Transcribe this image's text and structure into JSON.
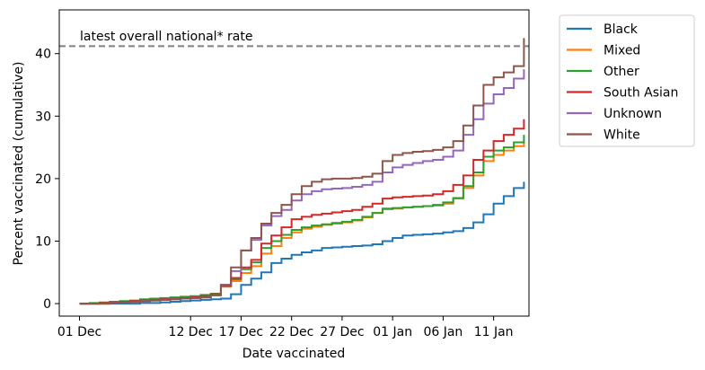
{
  "chart_data": {
    "type": "line",
    "step": true,
    "xlabel": "Date vaccinated",
    "ylabel": "Percent vaccinated (cumulative)",
    "x_ticks": [
      {
        "label": "01 Dec",
        "day": 0
      },
      {
        "label": "12 Dec",
        "day": 11
      },
      {
        "label": "17 Dec",
        "day": 16
      },
      {
        "label": "22 Dec",
        "day": 21
      },
      {
        "label": "27 Dec",
        "day": 26
      },
      {
        "label": "01 Jan",
        "day": 31
      },
      {
        "label": "06 Jan",
        "day": 36
      },
      {
        "label": "11 Jan",
        "day": 41
      }
    ],
    "y_ticks": [
      0,
      10,
      20,
      30,
      40
    ],
    "xlim": [
      -2,
      44.5
    ],
    "ylim": [
      -2,
      47
    ],
    "reference_line": {
      "label": "latest overall national* rate",
      "value": 41.2,
      "color": "#808080"
    },
    "legend_position": "outside-right",
    "days": [
      0,
      1,
      2,
      3,
      4,
      5,
      6,
      7,
      8,
      9,
      10,
      11,
      12,
      13,
      14,
      15,
      16,
      17,
      18,
      19,
      20,
      21,
      22,
      23,
      24,
      25,
      26,
      27,
      28,
      29,
      30,
      31,
      32,
      33,
      34,
      35,
      36,
      37,
      38,
      39,
      40,
      41,
      42,
      43,
      44
    ],
    "series": [
      {
        "name": "Black",
        "color": "#1f77b4",
        "values": [
          0,
          0,
          0,
          0,
          0,
          0,
          0.1,
          0.1,
          0.2,
          0.3,
          0.4,
          0.5,
          0.6,
          0.7,
          0.8,
          1.5,
          3,
          4,
          5,
          6.5,
          7.2,
          7.8,
          8.2,
          8.5,
          8.9,
          9,
          9.1,
          9.2,
          9.3,
          9.5,
          10,
          10.5,
          10.9,
          11,
          11.1,
          11.2,
          11.4,
          11.6,
          12.1,
          13,
          14.3,
          16,
          17.2,
          18.5,
          19.5
        ]
      },
      {
        "name": "Mixed",
        "color": "#ff7f0e",
        "values": [
          0,
          0,
          0.1,
          0.2,
          0.3,
          0.4,
          0.5,
          0.6,
          0.7,
          0.8,
          0.9,
          1,
          1.2,
          1.5,
          2.7,
          3.6,
          4.9,
          6,
          8,
          9.2,
          10.5,
          11.4,
          12,
          12.3,
          12.6,
          12.8,
          13,
          13.3,
          13.8,
          14.5,
          15.1,
          15.2,
          15.4,
          15.5,
          15.6,
          15.7,
          16,
          16.8,
          18.5,
          20.5,
          22.8,
          23.8,
          24.5,
          25.2,
          26
        ]
      },
      {
        "name": "Other",
        "color": "#2ca02c",
        "values": [
          0,
          0.1,
          0.2,
          0.3,
          0.4,
          0.5,
          0.7,
          0.8,
          0.9,
          1,
          1.1,
          1.2,
          1.4,
          1.6,
          2.8,
          3.9,
          5.5,
          6.6,
          8.9,
          10,
          11,
          11.8,
          12.2,
          12.5,
          12.7,
          12.9,
          13.1,
          13.4,
          13.9,
          14.5,
          15.2,
          15.3,
          15.4,
          15.5,
          15.6,
          15.8,
          16.2,
          16.9,
          18.8,
          21,
          23.5,
          24.5,
          25,
          25.8,
          27
        ]
      },
      {
        "name": "South Asian",
        "color": "#d62728",
        "values": [
          0,
          0,
          0.1,
          0.2,
          0.3,
          0.4,
          0.5,
          0.6,
          0.7,
          0.8,
          0.9,
          1,
          1.2,
          1.5,
          2.9,
          4.1,
          5.8,
          7,
          9.6,
          10.9,
          12.2,
          13.5,
          13.9,
          14.2,
          14.4,
          14.6,
          14.8,
          15,
          15.5,
          16,
          16.8,
          17,
          17.1,
          17.2,
          17.3,
          17.5,
          18,
          19,
          20.5,
          23,
          24.5,
          26,
          27,
          28,
          29.5
        ]
      },
      {
        "name": "Unknown",
        "color": "#9467bd",
        "values": [
          0,
          0,
          0,
          0.1,
          0.2,
          0.3,
          0.4,
          0.5,
          0.6,
          0.7,
          0.8,
          0.9,
          1,
          1.3,
          3,
          5.2,
          8.5,
          10.2,
          12.5,
          14,
          15,
          16.5,
          17.5,
          18,
          18.3,
          18.4,
          18.5,
          18.7,
          19,
          19.5,
          21,
          21.8,
          22.2,
          22.5,
          22.8,
          23,
          23.5,
          24.5,
          27,
          29.5,
          32,
          33.5,
          34.5,
          36,
          37.5
        ]
      },
      {
        "name": "White",
        "color": "#8c564b",
        "values": [
          0,
          0,
          0,
          0.1,
          0.2,
          0.3,
          0.4,
          0.5,
          0.6,
          0.7,
          0.8,
          0.9,
          1,
          1.4,
          3,
          5.8,
          8.5,
          10.5,
          12.8,
          14.5,
          15.8,
          17.5,
          18.8,
          19.5,
          19.9,
          20,
          20,
          20.1,
          20.3,
          20.8,
          22.8,
          23.8,
          24.1,
          24.3,
          24.4,
          24.6,
          25,
          26,
          28.5,
          31.7,
          35,
          36.2,
          37,
          38,
          42.5
        ]
      }
    ]
  }
}
